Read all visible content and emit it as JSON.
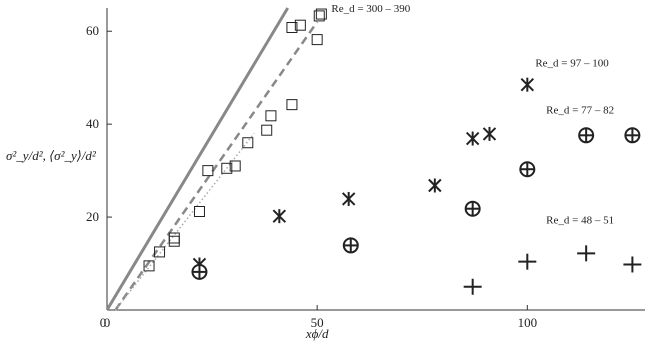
{
  "chart_data": {
    "type": "scatter",
    "xlabel": "xϕ/d",
    "ylabel": "σ²_y/d², ⟨σ²_y⟩/d²",
    "xlim": [
      0,
      128
    ],
    "ylim": [
      0,
      65
    ],
    "xticks": [
      0,
      50,
      100
    ],
    "yticks": [
      20,
      40,
      60
    ],
    "grid": false,
    "series": [
      {
        "name": "Re_d = 300 – 390",
        "marker": "square",
        "points": [
          [
            10,
            9.5
          ],
          [
            12.5,
            12.5
          ],
          [
            16,
            14.8
          ],
          [
            16,
            15.5
          ],
          [
            22,
            21.2
          ],
          [
            24,
            30
          ],
          [
            28.5,
            30.5
          ],
          [
            30.5,
            31
          ],
          [
            33.5,
            36
          ],
          [
            38,
            38.7
          ],
          [
            39,
            41.8
          ],
          [
            44,
            44.2
          ],
          [
            44,
            60.8
          ],
          [
            46,
            61.3
          ],
          [
            50,
            58.2
          ],
          [
            50.5,
            63.3
          ],
          [
            51,
            63.7
          ]
        ]
      },
      {
        "name": "Re_d = 97 – 100",
        "marker": "asterisk",
        "points": [
          {
            "x": 22,
            "y": 9.8,
            "err": 1.8
          },
          {
            "x": 41,
            "y": 20.2,
            "err": 2.5
          },
          {
            "x": 57.5,
            "y": 23.9,
            "err": 2.8
          },
          {
            "x": 78,
            "y": 26.8,
            "err": 3.5
          },
          {
            "x": 87,
            "y": 36.9,
            "err": 1.5
          },
          {
            "x": 91,
            "y": 37.9,
            "err": 5
          },
          {
            "x": 100,
            "y": 48.5,
            "err": 4
          }
        ]
      },
      {
        "name": "Re_d = 77 – 82",
        "marker": "circle-plus",
        "points": [
          {
            "x": 22,
            "y": 8.2,
            "err": 2.5
          },
          {
            "x": 58,
            "y": 13.9,
            "err": 2.2
          },
          {
            "x": 87,
            "y": 21.8,
            "err": 0.8
          },
          {
            "x": 100,
            "y": 30.3,
            "err": 2.2
          },
          {
            "x": 114,
            "y": 37.6,
            "err": 3
          },
          {
            "x": 125,
            "y": 37.6,
            "err": 2
          }
        ]
      },
      {
        "name": "Re_d = 48 – 51",
        "marker": "plus",
        "points": [
          {
            "x": 87,
            "y": 5,
            "err": 0
          },
          {
            "x": 100,
            "y": 10.4,
            "err": 1.5
          },
          {
            "x": 114,
            "y": 12.2,
            "err": 3.8
          },
          {
            "x": 125,
            "y": 9.8,
            "err": 1.5
          }
        ]
      }
    ],
    "lines": [
      {
        "style": "solid",
        "color": "#888888",
        "points": [
          [
            0,
            0
          ],
          [
            43,
            65
          ]
        ]
      },
      {
        "style": "dashed",
        "color": "#888888",
        "points": [
          [
            2,
            0
          ],
          [
            50,
            62
          ]
        ]
      },
      {
        "style": "dotted",
        "color": "#aaaaaa",
        "points": [
          [
            2,
            0
          ],
          [
            35,
            38
          ]
        ]
      }
    ]
  }
}
